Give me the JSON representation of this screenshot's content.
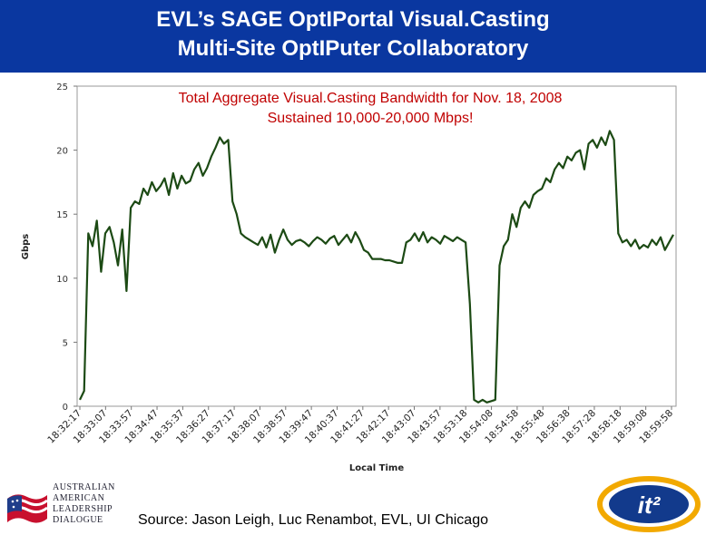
{
  "header": {
    "line1": "EVL’s SAGE OptIPortal Visual.Casting",
    "line2": "Multi-Site OptIPuter Collaboratory"
  },
  "chart_data": {
    "type": "line",
    "title": "Total Aggregate Visual.Casting Bandwidth for Nov. 18, 2008",
    "subtitle": "Sustained 10,000-20,000 Mbps!",
    "xlabel": "Local Time",
    "ylabel": "Gbps",
    "ylim": [
      0,
      25
    ],
    "yticks": [
      0,
      5,
      10,
      15,
      20,
      25
    ],
    "xticks": [
      "18:32:17",
      "18:33:07",
      "18:33:57",
      "18:34:47",
      "18:35:37",
      "18:36:27",
      "18:37:17",
      "18:38:07",
      "18:38:57",
      "18:39:47",
      "18:40:37",
      "18:41:27",
      "18:42:17",
      "18:43:07",
      "18:43:57",
      "18:53:18",
      "18:54:08",
      "18:54:58",
      "18:55:48",
      "18:56:38",
      "18:57:28",
      "18:58:18",
      "18:59:08",
      "18:59:58"
    ],
    "grid": false,
    "line_color": "#1c4a14",
    "series": [
      {
        "values": [
          0.5,
          1.2,
          13.5,
          12.5,
          14.5,
          10.5,
          13.5,
          14.0,
          12.8,
          11.0,
          13.8,
          9.0,
          15.5,
          16.0,
          15.8,
          17.0,
          16.5,
          17.5,
          16.8,
          17.2,
          17.8,
          16.5,
          18.2,
          17.0,
          18.0,
          17.4,
          17.6,
          18.5,
          19.0,
          18.0,
          18.6,
          19.5,
          20.2,
          21.0,
          20.5,
          20.8,
          16.0,
          15.0,
          13.5,
          13.2,
          13.0,
          12.8,
          12.6,
          13.2,
          12.4,
          13.4,
          12.0,
          13.0,
          13.8,
          13.0,
          12.6,
          12.9,
          13.0,
          12.8,
          12.5,
          12.9,
          13.2,
          13.0,
          12.7,
          13.1,
          13.3,
          12.6,
          13.0,
          13.4,
          12.8,
          13.6,
          13.0,
          12.2,
          12.0,
          11.5,
          11.5,
          11.5,
          11.4,
          11.4,
          11.3,
          11.2,
          11.2,
          12.8,
          13.0,
          13.5,
          12.9,
          13.6,
          12.8,
          13.2,
          13.0,
          12.7,
          13.3,
          13.1,
          12.9,
          13.2,
          13.0,
          12.8,
          8.0,
          0.5,
          0.3,
          0.5,
          0.3,
          0.4,
          0.5,
          11.0,
          12.5,
          13.0,
          15.0,
          14.0,
          15.5,
          16.0,
          15.5,
          16.5,
          16.8,
          17.0,
          17.8,
          17.5,
          18.5,
          19.0,
          18.6,
          19.5,
          19.2,
          19.8,
          20.0,
          18.5,
          20.5,
          20.8,
          20.2,
          21.0,
          20.4,
          21.5,
          20.8,
          13.5,
          12.8,
          13.0,
          12.5,
          13.0,
          12.3,
          12.6,
          12.4,
          13.0,
          12.6,
          13.2,
          12.2,
          12.8,
          13.4
        ]
      }
    ]
  },
  "footer": {
    "logo_left_lines": [
      "AUSTRALIAN",
      "AMERICAN",
      "LEADERSHIP",
      "DIALOGUE"
    ],
    "source": "Source: Jason Leigh, Luc Renambot, EVL, UI Chicago",
    "logo_right_text": "it²"
  }
}
